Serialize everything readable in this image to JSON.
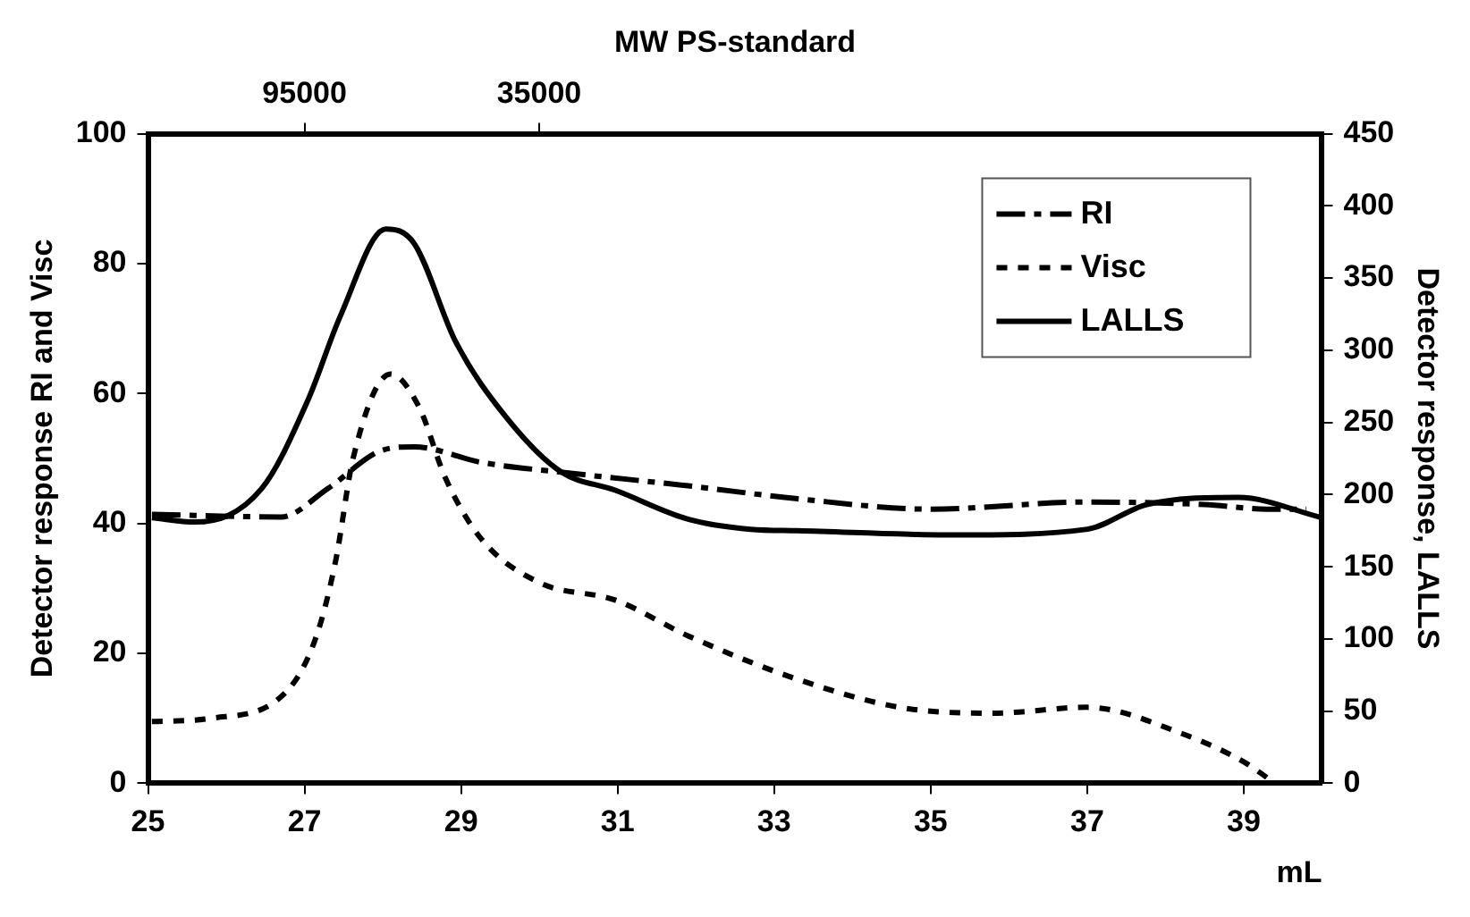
{
  "chart_data": {
    "type": "line",
    "xlabel": "mL",
    "ylabel": "Detector response RI and Visc",
    "y2label": "Detector response, LALLS",
    "x2label": "MW PS-standard",
    "xlim": [
      25,
      40
    ],
    "xticks": [
      25,
      27,
      29,
      31,
      33,
      35,
      37,
      39
    ],
    "x2lim": [
      185000,
      1250
    ],
    "x2ticks": [
      95000,
      35000
    ],
    "log": "x2",
    "ylim": [
      0,
      100
    ],
    "yticks": [
      0,
      20,
      40,
      60,
      80,
      100
    ],
    "y2lim": [
      0,
      450
    ],
    "y2ticks": [
      0,
      50,
      100,
      150,
      200,
      250,
      300,
      350,
      400,
      450
    ],
    "grid": false,
    "legend": "top right",
    "marker": "none",
    "series": [
      {
        "name": "RI",
        "color": "#000000",
        "line_style": "dashed",
        "x": [
          25.05,
          26.7,
          27.3,
          28.0,
          28.4,
          29.26,
          30.35,
          31.9,
          33.3,
          35.0,
          37.0,
          38.5,
          39.3,
          39.8
        ],
        "values": [
          41.4,
          41,
          45.4,
          51.3,
          51.8,
          49.4,
          47.8,
          45.8,
          43.8,
          42.2,
          43.3,
          42.9,
          42.2,
          42.2
        ]
      },
      {
        "name": "Visc",
        "color": "#000000",
        "line_style": "dotted",
        "x": [
          25.05,
          25.8,
          26.76,
          27.15,
          27.4,
          27.62,
          28.1,
          28.46,
          28.8,
          29.26,
          30.0,
          30.97,
          31.9,
          33.3,
          34.65,
          35.8,
          37.0,
          38.2,
          39.0,
          39.4
        ],
        "values": [
          9.5,
          10,
          14,
          22.6,
          34.4,
          50,
          63,
          58,
          47,
          37.6,
          30.9,
          28.2,
          22.7,
          16,
          11.6,
          10.8,
          11.7,
          7.7,
          3.3,
          0
        ]
      },
      {
        "name": "LALLS",
        "color": "#000000",
        "line_style": "solid",
        "axis": "y2",
        "x": [
          25.05,
          25.6,
          26.45,
          27.04,
          27.46,
          28.04,
          28.4,
          28.93,
          29.57,
          30.27,
          30.97,
          31.9,
          32.7,
          33.3,
          35.4,
          37.0,
          37.76,
          38.93,
          40.0
        ],
        "values": [
          184,
          181,
          204,
          265,
          324,
          384,
          374,
          306,
          254,
          216,
          203,
          183,
          176,
          175,
          172,
          176,
          193,
          198,
          184
        ]
      }
    ]
  }
}
